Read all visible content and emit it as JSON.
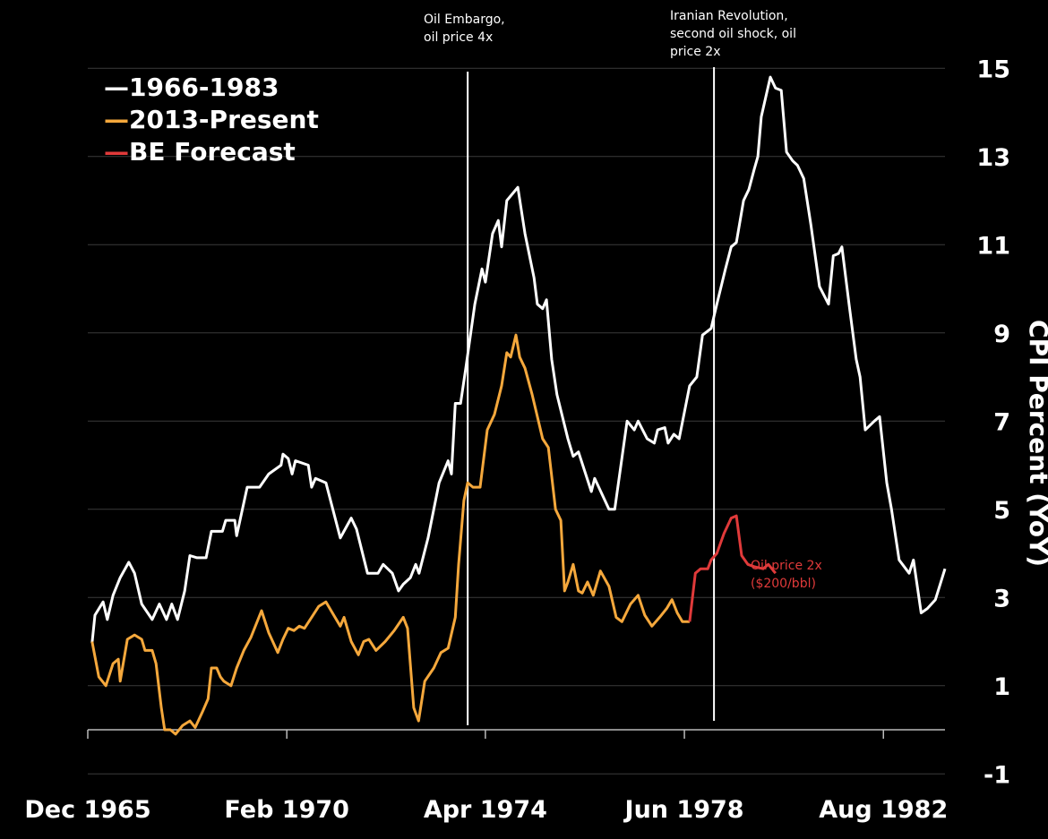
{
  "chart_data": {
    "type": "line",
    "title": "",
    "xlabel": "",
    "ylabel": "CPI Percent (YoY)",
    "ylim": [
      -1,
      15
    ],
    "yticks": [
      15,
      13,
      11,
      9,
      7,
      5,
      3,
      1,
      -1
    ],
    "xticks": [
      "Dec 1965",
      "Feb 1970",
      "Apr 1974",
      "Jun 1978",
      "Aug 1982"
    ],
    "xtick_values": [
      1965.92,
      1970.09,
      1974.25,
      1978.42,
      1982.59
    ],
    "xlim": [
      1965.92,
      1983.88
    ],
    "grid": true,
    "legend_placement": "top-left",
    "background": "#000000",
    "series": [
      {
        "name": "1966-1983",
        "color": "#ffffff",
        "x": [
          1966.01,
          1966.07,
          1966.24,
          1966.33,
          1966.45,
          1966.6,
          1966.78,
          1966.9,
          1967.05,
          1967.27,
          1967.42,
          1967.57,
          1967.68,
          1967.8,
          1967.95,
          1968.06,
          1968.21,
          1968.4,
          1968.51,
          1968.74,
          1968.81,
          1969.0,
          1969.04,
          1969.26,
          1969.52,
          1969.71,
          1969.97,
          1970.01,
          1970.12,
          1970.2,
          1970.27,
          1970.54,
          1970.61,
          1970.69,
          1970.91,
          1971.21,
          1971.44,
          1971.55,
          1971.78,
          1972.0,
          1972.11,
          1972.3,
          1972.43,
          1972.53,
          1972.68,
          1972.79,
          1972.86,
          1973.05,
          1973.28,
          1973.47,
          1973.54,
          1973.62,
          1973.73,
          1973.84,
          1974.03,
          1974.18,
          1974.25,
          1974.4,
          1974.52,
          1974.59,
          1974.7,
          1974.93,
          1975.08,
          1975.27,
          1975.34,
          1975.45,
          1975.53,
          1975.64,
          1975.75,
          1975.98,
          1976.09,
          1976.2,
          1976.47,
          1976.54,
          1976.84,
          1976.96,
          1977.22,
          1977.37,
          1977.45,
          1977.64,
          1977.79,
          1977.86,
          1978.01,
          1978.08,
          1978.2,
          1978.31,
          1978.53,
          1978.68,
          1978.8,
          1978.98,
          1979.1,
          1979.28,
          1979.4,
          1979.51,
          1979.66,
          1979.77,
          1979.88,
          1979.96,
          1980.03,
          1980.22,
          1980.33,
          1980.45,
          1980.56,
          1980.69,
          1980.79,
          1980.92,
          1981.07,
          1981.25,
          1981.44,
          1981.54,
          1981.65,
          1981.72,
          1981.87,
          1982.02,
          1982.1,
          1982.21,
          1982.4,
          1982.51,
          1982.66,
          1982.76,
          1982.92,
          1983.13,
          1983.22,
          1983.38,
          1983.51,
          1983.68,
          1983.88
        ],
        "y": [
          1.97,
          2.6,
          2.9,
          2.5,
          3.05,
          3.45,
          3.8,
          3.55,
          2.85,
          2.5,
          2.85,
          2.5,
          2.85,
          2.5,
          3.15,
          3.95,
          3.9,
          3.9,
          4.5,
          4.5,
          4.75,
          4.75,
          4.4,
          5.5,
          5.5,
          5.8,
          6.0,
          6.25,
          6.15,
          5.8,
          6.1,
          6.0,
          5.5,
          5.7,
          5.6,
          4.35,
          4.8,
          4.55,
          3.55,
          3.55,
          3.75,
          3.55,
          3.15,
          3.3,
          3.45,
          3.75,
          3.55,
          4.35,
          5.6,
          6.1,
          5.8,
          7.4,
          7.4,
          8.2,
          9.65,
          10.45,
          10.15,
          11.25,
          11.55,
          10.95,
          12.0,
          12.3,
          11.25,
          10.25,
          9.65,
          9.55,
          9.75,
          8.4,
          7.6,
          6.6,
          6.2,
          6.3,
          5.4,
          5.7,
          5.0,
          5.0,
          7.0,
          6.8,
          7.0,
          6.6,
          6.5,
          6.8,
          6.85,
          6.5,
          6.7,
          6.6,
          7.8,
          8.0,
          8.95,
          9.1,
          9.65,
          10.45,
          10.95,
          11.05,
          12.0,
          12.25,
          12.7,
          13.0,
          13.9,
          14.8,
          14.55,
          14.5,
          13.1,
          12.9,
          12.8,
          12.5,
          11.45,
          10.05,
          9.65,
          10.75,
          10.8,
          10.95,
          9.65,
          8.4,
          8.0,
          6.8,
          7.0,
          7.1,
          5.6,
          5.0,
          3.85,
          3.55,
          3.85,
          2.65,
          2.75,
          2.95,
          3.65
        ]
      },
      {
        "name": "2013-Present",
        "color": "#f5a83c",
        "x": [
          1966.01,
          1966.15,
          1966.3,
          1966.45,
          1966.56,
          1966.6,
          1966.75,
          1966.9,
          1967.05,
          1967.12,
          1967.27,
          1967.35,
          1967.46,
          1967.53,
          1967.65,
          1967.76,
          1967.91,
          1968.06,
          1968.17,
          1968.32,
          1968.44,
          1968.51,
          1968.62,
          1968.7,
          1968.77,
          1968.92,
          1969.04,
          1969.19,
          1969.34,
          1969.56,
          1969.71,
          1969.9,
          1970.01,
          1970.12,
          1970.24,
          1970.35,
          1970.46,
          1970.61,
          1970.76,
          1970.91,
          1971.1,
          1971.21,
          1971.29,
          1971.44,
          1971.59,
          1971.7,
          1971.81,
          1971.96,
          1972.15,
          1972.34,
          1972.53,
          1972.62,
          1972.75,
          1972.85,
          1972.98,
          1973.17,
          1973.32,
          1973.47,
          1973.62,
          1973.69,
          1973.8,
          1973.88,
          1973.99,
          1974.14,
          1974.29,
          1974.44,
          1974.59,
          1974.7,
          1974.78,
          1974.89,
          1974.97,
          1975.08,
          1975.23,
          1975.45,
          1975.57,
          1975.72,
          1975.83,
          1975.91,
          1975.98,
          1976.09,
          1976.2,
          1976.28,
          1976.39,
          1976.51,
          1976.66,
          1976.84,
          1976.99,
          1977.11,
          1977.29,
          1977.45,
          1977.59,
          1977.74,
          1977.9,
          1978.05,
          1978.16,
          1978.27,
          1978.38,
          1978.53
        ],
        "y": [
          2.0,
          1.2,
          1.0,
          1.5,
          1.6,
          1.1,
          2.05,
          2.15,
          2.05,
          1.8,
          1.8,
          1.5,
          0.5,
          0.0,
          0.0,
          -0.1,
          0.1,
          0.2,
          0.05,
          0.4,
          0.7,
          1.4,
          1.4,
          1.2,
          1.1,
          1.0,
          1.4,
          1.8,
          2.1,
          2.7,
          2.2,
          1.75,
          2.05,
          2.3,
          2.25,
          2.35,
          2.3,
          2.55,
          2.8,
          2.9,
          2.55,
          2.35,
          2.55,
          2.0,
          1.7,
          2.0,
          2.05,
          1.8,
          2.0,
          2.25,
          2.55,
          2.3,
          0.5,
          0.2,
          1.1,
          1.4,
          1.75,
          1.85,
          2.55,
          3.75,
          5.2,
          5.6,
          5.5,
          5.5,
          6.8,
          7.15,
          7.8,
          8.55,
          8.45,
          8.95,
          8.45,
          8.2,
          7.6,
          6.6,
          6.4,
          5.0,
          4.75,
          3.15,
          3.35,
          3.75,
          3.15,
          3.1,
          3.35,
          3.05,
          3.6,
          3.25,
          2.55,
          2.45,
          2.85,
          3.05,
          2.6,
          2.35,
          2.55,
          2.75,
          2.95,
          2.65,
          2.45,
          2.45
        ]
      },
      {
        "name": "BE Forecast",
        "color": "#e03a3a",
        "x": [
          1978.53,
          1978.65,
          1978.76,
          1978.91,
          1978.98,
          1979.1,
          1979.25,
          1979.4,
          1979.51,
          1979.62,
          1979.75,
          1979.88,
          1980.07,
          1980.18,
          1980.33
        ],
        "y": [
          2.45,
          3.55,
          3.65,
          3.65,
          3.85,
          4.0,
          4.45,
          4.8,
          4.85,
          3.95,
          3.75,
          3.7,
          3.65,
          3.75,
          3.55
        ]
      }
    ],
    "vertical_markers": [
      {
        "x": 1973.88,
        "label": "Oil Embargo,\noil price 4x"
      },
      {
        "x": 1979.04,
        "label": "Iranian Revolution,\nsecond oil shock, oil\nprice 2x"
      }
    ],
    "annotations": [
      {
        "text": "Oil price 2x\n($200/bbl)",
        "color": "#e03a3a"
      }
    ]
  }
}
